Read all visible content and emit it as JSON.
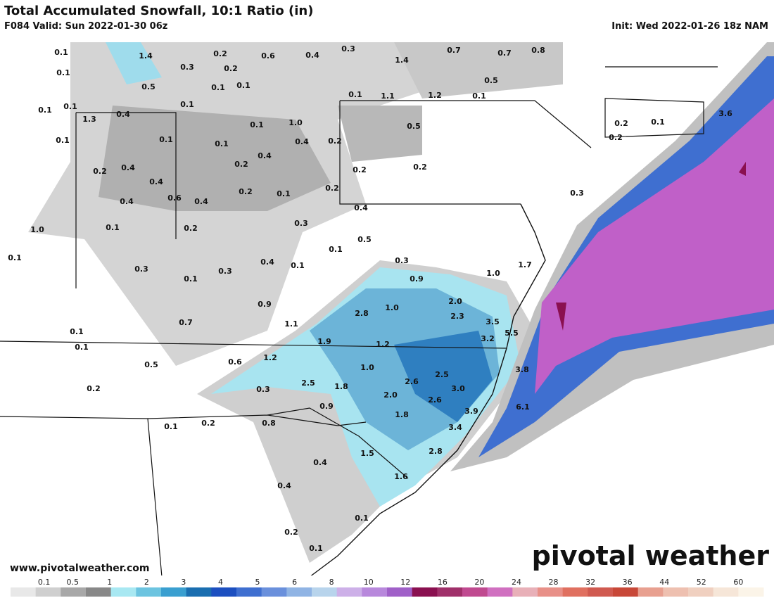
{
  "header": {
    "title": "Total Accumulated Snowfall, 10:1 Ratio (in)",
    "valid": "F084 Valid: Sun 2022-01-30 06z",
    "init": "Init: Wed 2022-01-26 18z NAM"
  },
  "footer": {
    "website": "www.pivotalweather.com",
    "brand": "pivotal weather"
  },
  "colorbar": {
    "labels": [
      "0.1",
      "0.5",
      "1",
      "2",
      "3",
      "4",
      "5",
      "6",
      "8",
      "10",
      "12",
      "16",
      "20",
      "24",
      "28",
      "32",
      "36",
      "44",
      "52",
      "60"
    ]
  },
  "map": {
    "point_labels": [
      "0.1",
      "1.4",
      "0.2",
      "0.6",
      "0.4",
      "0.3",
      "0.7",
      "0.7",
      "0.8",
      "0.1",
      "0.3",
      "0.2",
      "1.4",
      "0.5",
      "0.5",
      "0.1",
      "0.1",
      "0.1",
      "1.1",
      "1.2",
      "0.1",
      "0.1",
      "0.1",
      "0.1",
      "0.4",
      "1.3",
      "1.0",
      "0.1",
      "0.5",
      "0.2",
      "0.1",
      "3.6",
      "0.1",
      "0.1",
      "0.1",
      "0.4",
      "0.2",
      "0.2",
      "0.4",
      "0.2",
      "0.4",
      "0.2",
      "0.2",
      "0.2",
      "0.4",
      "0.2",
      "0.1",
      "0.2",
      "0.3",
      "0.4",
      "0.6",
      "0.4",
      "0.4",
      "1.0",
      "0.1",
      "0.2",
      "0.3",
      "0.5",
      "0.1",
      "0.1",
      "0.4",
      "0.1",
      "0.3",
      "1.7",
      "0.3",
      "0.3",
      "0.1",
      "1.0",
      "0.9",
      "0.9",
      "2.8",
      "1.0",
      "2.0",
      "2.3",
      "0.7",
      "1.1",
      "3.5",
      "5.5",
      "0.1",
      "1.9",
      "1.2",
      "3.2",
      "0.1",
      "0.5",
      "0.6",
      "1.2",
      "1.0",
      "3.8",
      "2.5",
      "2.5",
      "1.8",
      "2.6",
      "3.0",
      "0.2",
      "0.3",
      "2.0",
      "2.6",
      "0.9",
      "3.9",
      "6.1",
      "1.8",
      "0.1",
      "0.2",
      "0.8",
      "3.4",
      "2.8",
      "1.5",
      "0.4",
      "1.6",
      "0.4",
      "0.1",
      "0.2",
      "0.1"
    ]
  }
}
